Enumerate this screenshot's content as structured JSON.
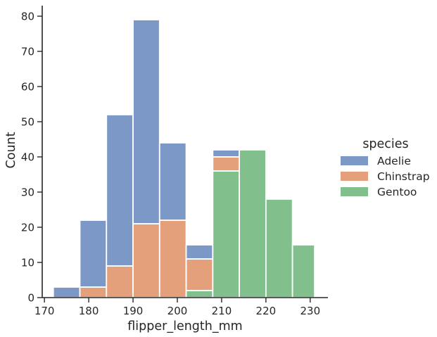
{
  "chart_data": {
    "type": "bar",
    "stacking": "stacked",
    "bins": [
      {
        "start": 172,
        "end": 178
      },
      {
        "start": 178,
        "end": 184
      },
      {
        "start": 184,
        "end": 190
      },
      {
        "start": 190,
        "end": 196
      },
      {
        "start": 196,
        "end": 202
      },
      {
        "start": 202,
        "end": 208
      },
      {
        "start": 208,
        "end": 214
      },
      {
        "start": 214,
        "end": 220
      },
      {
        "start": 220,
        "end": 226
      },
      {
        "start": 226,
        "end": 231
      }
    ],
    "series": [
      {
        "name": "Gentoo",
        "color": "#81bf8c",
        "values": [
          0,
          0,
          0,
          0,
          0,
          2,
          36,
          42,
          28,
          15
        ]
      },
      {
        "name": "Chinstrap",
        "color": "#e4a07a",
        "values": [
          0,
          3,
          9,
          21,
          22,
          9,
          4,
          0,
          0,
          0
        ]
      },
      {
        "name": "Adelie",
        "color": "#7b98c7",
        "values": [
          3,
          19,
          43,
          58,
          22,
          4,
          2,
          0,
          0,
          0
        ]
      }
    ],
    "xlabel": "flipper_length_mm",
    "ylabel": "Count",
    "xlim": [
      169.5,
      234
    ],
    "ylim": [
      0,
      83
    ],
    "xticks": [
      170,
      180,
      190,
      200,
      210,
      220,
      230
    ],
    "yticks": [
      0,
      10,
      20,
      30,
      40,
      50,
      60,
      70,
      80
    ],
    "legend": {
      "title": "species",
      "placement": "right",
      "entries": [
        {
          "label": "Adelie",
          "color": "#7b98c7"
        },
        {
          "label": "Chinstrap",
          "color": "#e4a07a"
        },
        {
          "label": "Gentoo",
          "color": "#81bf8c"
        }
      ]
    },
    "grid": false
  }
}
